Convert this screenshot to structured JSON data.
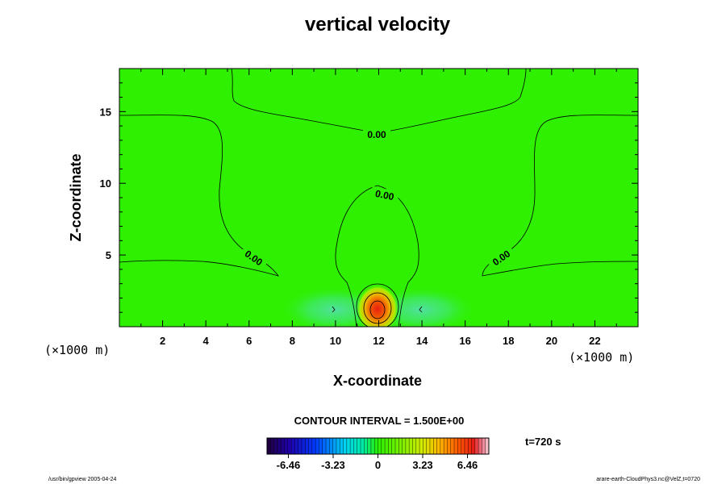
{
  "chart_data": {
    "type": "heatmap",
    "title": "vertical velocity",
    "xlabel": "X-coordinate",
    "ylabel": "Z-coordinate",
    "x_unit": "(×1000 m)",
    "y_unit": "(×1000 m)",
    "xlim": [
      0,
      24
    ],
    "ylim": [
      0,
      18
    ],
    "x_ticks": [
      2,
      4,
      6,
      8,
      10,
      12,
      14,
      16,
      18,
      20,
      22
    ],
    "y_ticks": [
      5,
      10,
      15
    ],
    "contour_interval_text": "CONTOUR INTERVAL = 1.500E+00",
    "contour_labels": [
      "0.00",
      "0.00",
      "0.00",
      "0.00"
    ],
    "colorbar": {
      "ticks": [
        "-6.46",
        "-3.23",
        "0",
        "3.23",
        "6.46"
      ],
      "range": [
        -8.0,
        8.0
      ]
    },
    "time_label": "t=720 s",
    "field_features": {
      "updraft_center": [
        12.0,
        1.2
      ],
      "updraft_peak": 7.5,
      "downdraft_centers": [
        [
          10.0,
          1.2
        ],
        [
          14.0,
          1.2
        ]
      ],
      "downdraft_min": -1.8
    }
  },
  "footer": {
    "left": "/usr/bin/gpview 2005-04-24",
    "right": "arare-earth-CloudPhys3.nc@VelZ,t=0720"
  }
}
